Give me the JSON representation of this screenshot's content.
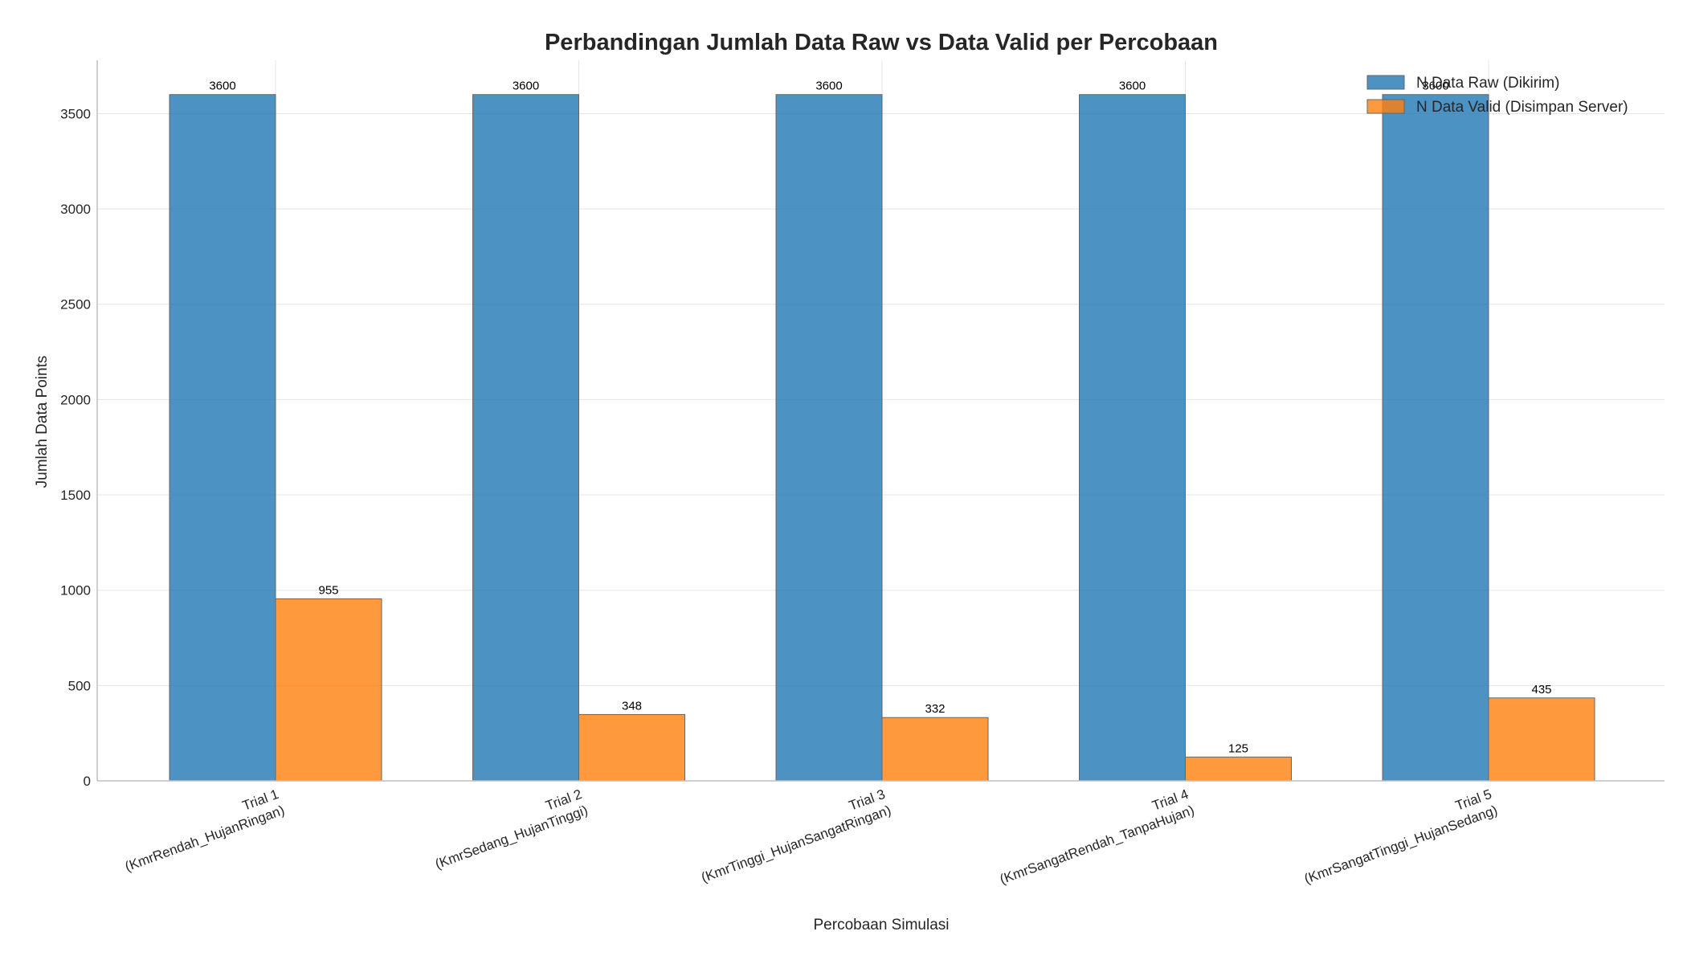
{
  "chart_data": {
    "type": "bar",
    "title": "Perbandingan Jumlah Data Raw vs Data Valid per Percobaan",
    "xlabel": "Percobaan Simulasi",
    "ylabel": "Jumlah Data Points",
    "categories": [
      [
        "Trial 1",
        "(KmrRendah_HujanRingan)"
      ],
      [
        "Trial 2",
        "(KmrSedang_HujanTinggi)"
      ],
      [
        "Trial 3",
        "(KmrTinggi_HujanSangatRingan)"
      ],
      [
        "Trial 4",
        "(KmrSangatRendah_TanpaHujan)"
      ],
      [
        "Trial 5",
        "(KmrSangatTinggi_HujanSedang)"
      ]
    ],
    "series": [
      {
        "name": "N Data Raw (Dikirim)",
        "values": [
          3600,
          3600,
          3600,
          3600,
          3600
        ],
        "color": "#1f77b4"
      },
      {
        "name": "N Data Valid (Disimpan Server)",
        "values": [
          955,
          348,
          332,
          125,
          435
        ],
        "color": "#ff7f0e"
      }
    ],
    "ylim": [
      0,
      3780
    ],
    "yticks": [
      0,
      500,
      1000,
      1500,
      2000,
      2500,
      3000,
      3500
    ],
    "grid": true,
    "legend_position": "top-right"
  }
}
